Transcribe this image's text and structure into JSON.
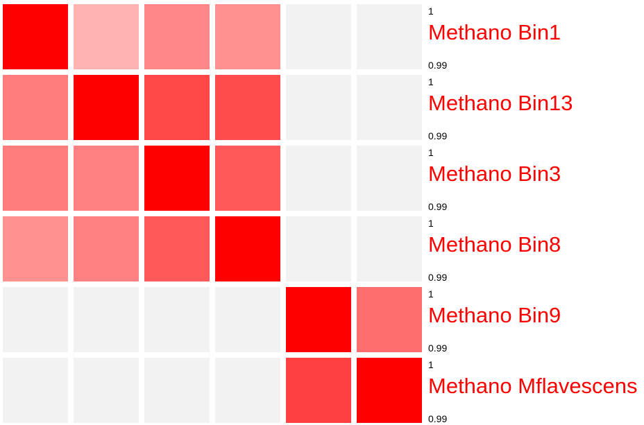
{
  "chart_data": {
    "type": "heatmap",
    "rows": [
      "Methano Bin1",
      "Methano Bin13",
      "Methano Bin3",
      "Methano Bin8",
      "Methano Bin9",
      "Methano Mflavescens"
    ],
    "values": [
      [
        1.0,
        0.3,
        0.47,
        0.43,
        0.0,
        0.0
      ],
      [
        0.51,
        1.0,
        0.72,
        0.7,
        0.0,
        0.0
      ],
      [
        0.51,
        0.5,
        1.0,
        0.65,
        0.0,
        0.0
      ],
      [
        0.43,
        0.5,
        0.65,
        1.0,
        0.0,
        0.0
      ],
      [
        0.0,
        0.0,
        0.0,
        0.0,
        1.0,
        0.57
      ],
      [
        0.0,
        0.0,
        0.0,
        0.0,
        0.75,
        1.0
      ]
    ],
    "scale_top_label": "1",
    "scale_bottom_label": "0.99",
    "colors": {
      "high": "#ff0000",
      "low": "#ffffff",
      "empty": "#f2f2f2",
      "label": "#ff0000"
    }
  }
}
